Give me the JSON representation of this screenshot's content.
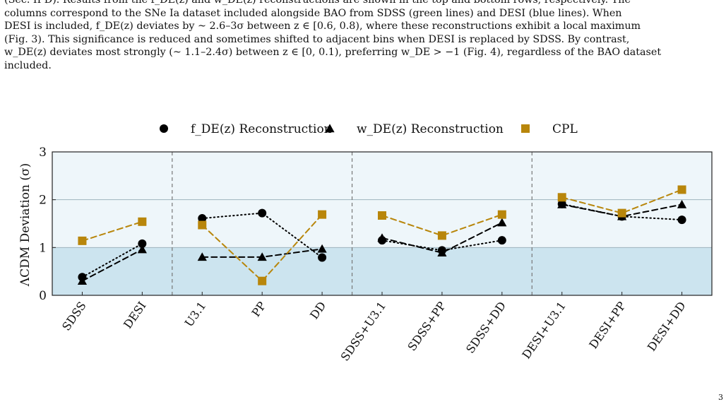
{
  "caption": {
    "lines": [
      "(Sec. II D). Results from the f_DE(z) and w_DE(z) reconstructions are shown in the top and bottom rows, respectively. The",
      "columns correspond to the SNe Ia dataset included alongside BAO from SDSS (green lines) and DESI (blue lines). When",
      "DESI is included, f_DE(z) deviates by ~ 2.6–3σ between z ∈ [0.6, 0.8), where these reconstructions exhibit a local maximum",
      "(Fig. 3). This significance is reduced and sometimes shifted to adjacent bins when DESI is replaced by SDSS. By contrast,",
      "w_DE(z) deviates most strongly (~ 1.1–2.4σ) between z ∈ [0, 0.1), preferring w_DE > −1 (Fig. 4), regardless of the BAO dataset",
      "included."
    ]
  },
  "page_number": "3",
  "chart_data": {
    "type": "line",
    "ylabel": "ΛCDM Deviation (σ)",
    "ylim": [
      0,
      3
    ],
    "yticks": [
      0,
      1,
      2,
      3
    ],
    "categories": [
      "SDSS",
      "DESI",
      "U3.1",
      "PP",
      "DD",
      "SDSS+U3.1",
      "SDSS+PP",
      "SDSS+DD",
      "DESI+U3.1",
      "DESI+PP",
      "DESI+DD"
    ],
    "groups": [
      {
        "start": 0,
        "end": 1
      },
      {
        "start": 2,
        "end": 4
      },
      {
        "start": 5,
        "end": 7
      },
      {
        "start": 8,
        "end": 10
      }
    ],
    "bands": [
      {
        "from": 0,
        "to": 1,
        "color": "#cce4ef"
      },
      {
        "from": 1,
        "to": 3,
        "color": "#eef6fa"
      }
    ],
    "legend_position": "top",
    "series": [
      {
        "name": "f_DE(z) Reconstruction",
        "marker": "circle",
        "dash": "dotted",
        "color": "#000000",
        "values": [
          0.38,
          1.08,
          1.61,
          1.72,
          0.79,
          1.15,
          0.94,
          1.15,
          1.91,
          1.65,
          1.58
        ]
      },
      {
        "name": "w_DE(z) Reconstruction",
        "marker": "triangle",
        "dash": "dashed",
        "color": "#000000",
        "values": [
          0.3,
          0.96,
          0.8,
          0.8,
          0.97,
          1.2,
          0.89,
          1.52,
          1.9,
          1.65,
          1.9
        ]
      },
      {
        "name": "CPL",
        "marker": "square",
        "dash": "dashed",
        "color": "#b8860b",
        "values": [
          1.14,
          1.54,
          1.47,
          0.3,
          1.69,
          1.67,
          1.25,
          1.69,
          2.05,
          1.72,
          2.21
        ]
      }
    ]
  }
}
